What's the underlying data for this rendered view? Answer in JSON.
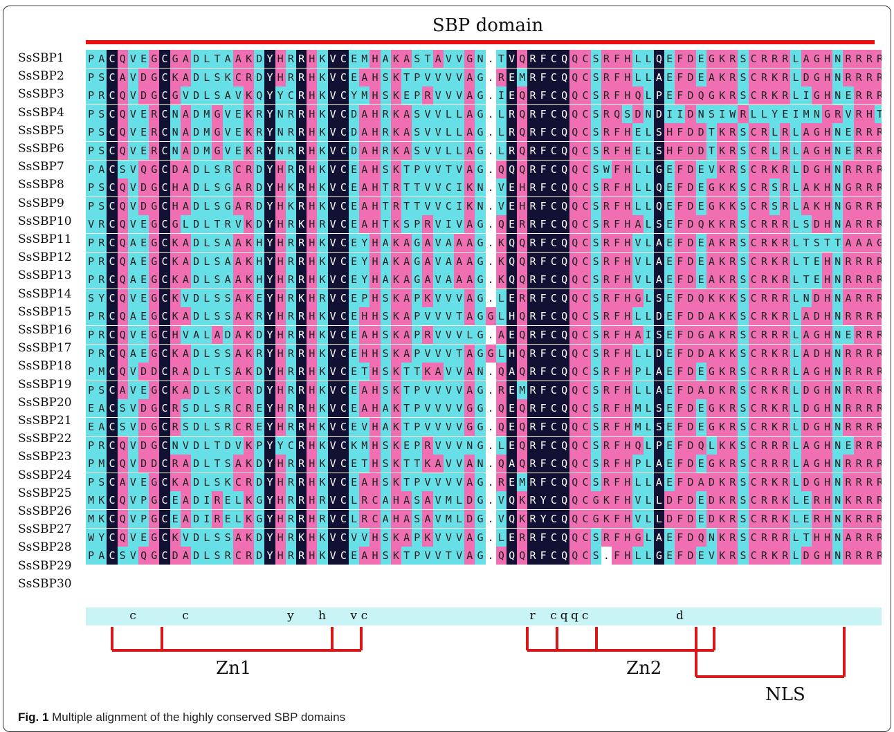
{
  "domain_label": "SBP domain",
  "sequences": [
    {
      "name": "SsSBP1",
      "seq": "PACQVEGCGADLTAAKDYHRRHKVCEMHAKASTAVVGN.TVQRFCQQCSRFHLLQEFDEGKRSCRRRLAGHNRRRRKTRP"
    },
    {
      "name": "SsSBP2",
      "seq": "PSCAVDGCKADLSKCRDYHRRHKVCEAHSKTPVVVVAG.REMRFCQQCSRFHLLAEFDEAKRSCRKRLDGHNRRRRKPQP"
    },
    {
      "name": "SsSBP3",
      "seq": "PRCQVDGCGVDLSAVKQYYCRHKVCYMHSKEPRVVVAG.IEQRFCQQCSRFHQLPEFDQGKRSCRKRLIGHNERRRKPPP"
    },
    {
      "name": "SsSBP4",
      "seq": "PSCQVERCNADMGVEKRYNRRHKVCDAHRKASVVLLAG.LRQRFCQQCSRQSDNDIIDNSIWRLLYEIMNGRVRHTHAGK"
    },
    {
      "name": "SsSBP5",
      "seq": "PSCQVERCNADMGVEKRYNRRHKVCDAHRKASVVLLAG.LRQRFCQQCSRFHELSHFDDTKRSCRLRLAGHNERRRRNPA"
    },
    {
      "name": "SsSBP6",
      "seq": "PSCQVERCNADMGVEKRYNRRHKVCDAHRKASVVLLAG.LRQRFCQQCSRFHELSHFDDTKRSCRLRLAGHNERRRRNPA"
    },
    {
      "name": "SsSBP7",
      "seq": "PACSVQGCDADLSRCRDYHRRHKVCEAHSKTPVVTVAG.QQQRFCQQCSWFHLLGEFDEVKRSCRKRLDGHNRRRRKPQP"
    },
    {
      "name": "SsSBP8",
      "seq": "PSCQVDGCHADLSGARDYHKRHKVCEAHTRTTVVCIKN.VEHRFCQQCSRFHLLQEFDEGKKSCRSRLAKHNGRRRKVQP"
    },
    {
      "name": "SsSBP9",
      "seq": "PSCQVDGCHADLSGARDYHKRHKVCEAHTRTTVVCIKN.VEHRFCQQCSRFHLLQEFDEGKKSCRSRLAKHNGRRRKVQP"
    },
    {
      "name": "SsSBP10",
      "seq": "VRCQVEGCGLDLTRVKDYHRKHRVCEAHTKSPRVIVAG.QERRFCQQCSRFHALSEFDQKKRSCRRRLSDHNARRRKPQP"
    },
    {
      "name": "SsSBP11",
      "seq": "PRCQAEGCKADLSAAKHYHRRHKVCEYHAKAGAVAAAG.KQQRFCQQCSRFHVLAEFDEAKRSCRKRLTSTTAAAGS..P"
    },
    {
      "name": "SsSBP12",
      "seq": "PRCQAEGCKADLSAAKHYHRRHKVCEYHAKAGAVAAAG.KQQRFCQQCSRFHVLAEFDEAKRSCRKRLTEHNRRRRK..P"
    },
    {
      "name": "SsSBP13",
      "seq": "PRCQAEGCKADLSAAKHYHRRHKVCEYHAKAGAVAAAG.KQQRFCQQCSRFHVLAEFDEAKRSCRKRLTEHNRRRRK..P"
    },
    {
      "name": "SsSBP14",
      "seq": "SYCQVEGCKVDLSSAKEYHRKHRVCEPHSKAPKVVVAG.LERRFCQQCSRFHGLSEFDQKKKSCRRRLNDHNARRRKPQP"
    },
    {
      "name": "SsSBP15",
      "seq": "PRCQAEGCKADLSSAKRYHRRHKVCEHHSKAPVVVTAGGLHQRFCQQCSRFHLLDEFDDAKKSCRKRLADHNRRRRKSKP"
    },
    {
      "name": "SsSBP16",
      "seq": "PRCQVEGCHVALADAKDYHRRHKVCEAHSKAPRVVVLG.AEQRFCQQCSRFHAISEFDGAKRSCRRRLAGHNERRRKSNV"
    },
    {
      "name": "SsSBP17",
      "seq": "PRCQAEGCKADLSSAKRYHRRHKVCEHHSKAPVVVTAGGLHQRFCQQCSRFHLLDEFDDAKKSCRKRLADHNRRRRKSKP"
    },
    {
      "name": "SsSBP18",
      "seq": "PMCQVDDCRADLTSAKDYHRRHKVCETHSKTTKAVVAN.QAQRFCQQCSRFHPLAEFDEGKRSCRRRLAGHNRRRRKTQP"
    },
    {
      "name": "SsSBP19",
      "seq": "PSCAVEGCKADLSKCRDYHRRHKVCEAHSKTPVVVVAG.REMRFCQQCSRFHLLAEFDADKRSCRKRLDGHNRRRRKPQP"
    },
    {
      "name": "SsSBP20",
      "seq": "EACSVDGCRSDLSRCREYHRRHKVCEAHAKTPVVVVGG.QEQRFCQQCSRFHMLSEFDEGKRSCRKRLDGHNRRRRKPQH"
    },
    {
      "name": "SsSBP21",
      "seq": "EACSVDGCRSDLSRCREYHRRHKVCEVHAKTPVVVVGG.QEQRFCQQCSRFHMLSEFDEGKRSCRKRLDGHNRRRRKPQH"
    },
    {
      "name": "SsSBP22",
      "seq": "PRCQVDGCNVDLTDVKPYYCRHKVCKMHSKEPRVVVNG.LEQRFCQQCSRFHQLPEFDQLKKSCRRRLAGHNERRRRPPP"
    },
    {
      "name": "SsSBP23",
      "seq": "PMCQVDDCRADLTSAKDYHRRHKVCETHSKTTKAVVAN.QAQRFCQQCSRFHPLAEFDEGKRSCRRRLAGHNRRRRKTQP"
    },
    {
      "name": "SsSBP24",
      "seq": "PSCAVEGCKADLSKCRDYHRRHKVCEAHSKTPVVVVAG.REMRFCQQCSRFHLLAEFDADKRSCRKRLDGHNRRRRKPQP"
    },
    {
      "name": "SsSBP25",
      "seq": "MKCQVPGCEADIRELKGYHRRHRVCLRCAHASAVMLDG.VQKRYCQQCGKFHVLLDFDEDKRSCRRKLERHNKRRRRKPD"
    },
    {
      "name": "SsSBP26",
      "seq": "MKCQVPGCEADIRELKGYHRRHRVCLRCAHASAVMLDG.VQKRYCQQCGKFHVLLDFDEDKRSCRRKLERHNKRRRRKPD"
    },
    {
      "name": "SsSBP27",
      "seq": "WYCQVEGCKVDLSSAKDYHRKHKVCVVHSKAPKVVVAG.LERRFCQQCSRFHGLAEFDQNKRSCRRRLTHHNARRRKPQA"
    },
    {
      "name": "SsSBP28",
      "seq": "PACSVQGCDADLSRCRDYHRRHKVCEAHSKTPVVTVAG.QQQRFCQQCS.FHLLGEFDEVKRSCRKRLDGHNRRRRKPQP"
    },
    {
      "name": "SsSBP29",
      "seq": "",
      "label_only": true
    },
    {
      "name": "SsSBP30",
      "seq": "",
      "label_only": true
    }
  ],
  "consensus": [
    {
      "pos": 2,
      "letter": "c"
    },
    {
      "pos": 7,
      "letter": "c"
    },
    {
      "pos": 17,
      "letter": "y"
    },
    {
      "pos": 20,
      "letter": "h"
    },
    {
      "pos": 23,
      "letter": "v"
    },
    {
      "pos": 24,
      "letter": "c"
    },
    {
      "pos": 40,
      "letter": "r"
    },
    {
      "pos": 42,
      "letter": "c"
    },
    {
      "pos": 43,
      "letter": "q"
    },
    {
      "pos": 44,
      "letter": "q"
    },
    {
      "pos": 45,
      "letter": "c"
    },
    {
      "pos": 54,
      "letter": "d"
    }
  ],
  "brackets": {
    "zn1_label": "Zn1",
    "zn2_label": "Zn2",
    "nls_label": "NLS"
  },
  "caption": {
    "label": "Fig. 1",
    "text": " Multiple alignment of the highly conserved SBP domains"
  },
  "colors": {
    "domain_bar": "#e81010",
    "bracket": "#d81818",
    "identical_column": "#111133",
    "high_similarity": "#f06fb2",
    "low_similarity": "#66e0e6"
  }
}
